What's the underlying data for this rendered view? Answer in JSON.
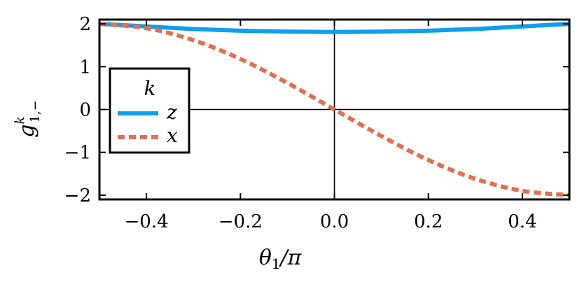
{
  "chart_data": {
    "type": "line",
    "title": "",
    "xlabel": "θ1/π",
    "xlabel_parts": {
      "main": "θ",
      "sub": "1",
      "rest": "/π"
    },
    "ylabel": "g^k_{1,−}",
    "ylabel_parts": {
      "main": "g",
      "sup": "k",
      "sub": "1,−"
    },
    "xlim": [
      -0.5,
      0.5
    ],
    "ylim": [
      -2.1,
      2.1
    ],
    "xticks": [
      -0.4,
      -0.2,
      0.0,
      0.2,
      0.4
    ],
    "xtick_labels": [
      "−0.4",
      "−0.2",
      "0.0",
      "0.2",
      "0.4"
    ],
    "yticks": [
      2,
      1,
      0,
      -1,
      -2
    ],
    "ytick_labels": [
      "2",
      "1",
      "0",
      "−1",
      "−2"
    ],
    "zero_lines": true,
    "grid": false,
    "legend": {
      "title": "k",
      "placement": "left"
    },
    "series": [
      {
        "name": "z",
        "style": "solid",
        "color": "#0f9fef",
        "x": [
          -0.5,
          -0.4,
          -0.3,
          -0.2,
          -0.1,
          0.0,
          0.1,
          0.2,
          0.3,
          0.4,
          0.5
        ],
        "y": [
          2.0,
          1.94,
          1.88,
          1.84,
          1.82,
          1.81,
          1.82,
          1.84,
          1.88,
          1.94,
          2.0
        ]
      },
      {
        "name": "x",
        "style": "dashed",
        "color": "#e07050",
        "x": [
          -0.5,
          -0.4,
          -0.3,
          -0.2,
          -0.1,
          0.0,
          0.1,
          0.2,
          0.3,
          0.4,
          0.5
        ],
        "y": [
          2.0,
          1.9,
          1.62,
          1.18,
          0.62,
          0.0,
          -0.62,
          -1.18,
          -1.62,
          -1.9,
          -2.0
        ]
      }
    ]
  }
}
